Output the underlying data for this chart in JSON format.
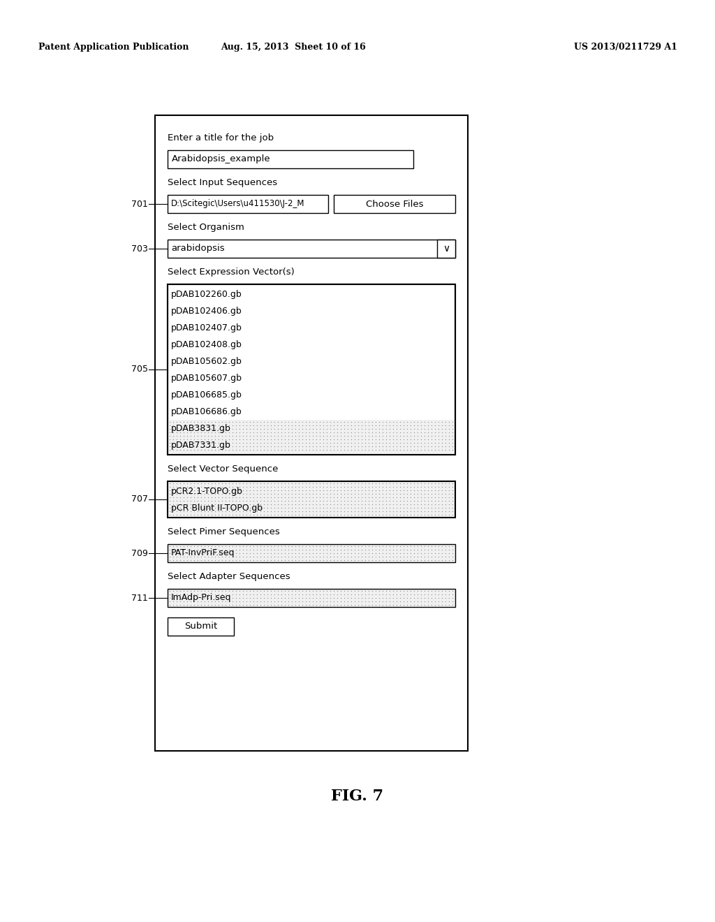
{
  "bg_color": "#ffffff",
  "header_left": "Patent Application Publication",
  "header_center": "Aug. 15, 2013  Sheet 10 of 16",
  "header_right": "US 2013/0211729 A1",
  "figure_label": "FIG. 7",
  "title_field_label": "Enter a title for the job",
  "title_field_value": "Arabidopsis_example",
  "input_seq_label": "Select Input Sequences",
  "input_seq_value": "D:\\Scitegic\\Users\\u411530\\J-2_M",
  "input_seq_btn": "Choose Files",
  "ref_701": "701",
  "organism_label": "Select Organism",
  "organism_value": "arabidopsis",
  "ref_703": "703",
  "vector_section_label": "Select Expression Vector(s)",
  "vector_items_white": [
    "pDAB102260.gb",
    "pDAB102406.gb",
    "pDAB102407.gb",
    "pDAB102408.gb",
    "pDAB105602.gb",
    "pDAB105607.gb",
    "pDAB106685.gb",
    "pDAB106686.gb"
  ],
  "vector_items_shaded": [
    "pDAB3831.gb",
    "pDAB7331.gb"
  ],
  "ref_705": "705",
  "vector_seq_label": "Select Vector Sequence",
  "vector_seq_items": [
    "pCR2.1-TOPO.gb",
    "pCR Blunt II-TOPO.gb"
  ],
  "ref_707": "707",
  "primer_seq_label": "Select Pimer Sequences",
  "primer_seq_value": "PAT-InvPriF.seq",
  "ref_709": "709",
  "adapter_seq_label": "Select Adapter Sequences",
  "adapter_seq_value": "ImAdp-Pri.seq",
  "ref_711": "711",
  "submit_btn": "Submit",
  "shaded_color": "#d8d8d8",
  "text_color": "#000000"
}
